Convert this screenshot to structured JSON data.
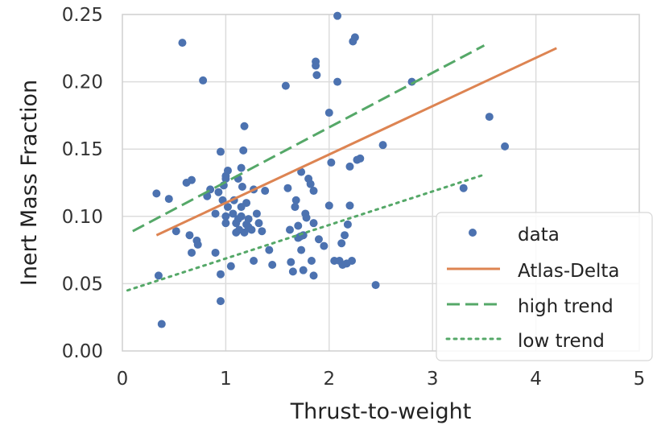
{
  "chart_data": {
    "type": "scatter",
    "xlabel": "Thrust-to-weight",
    "ylabel": "Inert Mass Fraction",
    "xlim": [
      0,
      5
    ],
    "ylim": [
      0,
      0.25
    ],
    "xticks": [
      0,
      1,
      2,
      3,
      4,
      5
    ],
    "xtick_labels": [
      "0",
      "1",
      "2",
      "3",
      "4",
      "5"
    ],
    "yticks": [
      0,
      0.05,
      0.1,
      0.15,
      0.2,
      0.25
    ],
    "ytick_labels": [
      "0.00",
      "0.05",
      "0.10",
      "0.15",
      "0.20",
      "0.25"
    ],
    "grid": true,
    "legend_position": "bottom-right",
    "colors": {
      "data": "#4c72b0",
      "atlas": "#dd8452",
      "high": "#55a868",
      "low": "#55a868",
      "grid": "#dcdcdc",
      "frame": "#cfcfcf"
    },
    "series": [
      {
        "name": "data",
        "kind": "points",
        "points": [
          [
            0.33,
            0.117
          ],
          [
            0.35,
            0.056
          ],
          [
            0.38,
            0.02
          ],
          [
            0.45,
            0.113
          ],
          [
            0.52,
            0.089
          ],
          [
            0.58,
            0.229
          ],
          [
            0.62,
            0.125
          ],
          [
            0.65,
            0.086
          ],
          [
            0.67,
            0.127
          ],
          [
            0.67,
            0.073
          ],
          [
            0.72,
            0.082
          ],
          [
            0.73,
            0.079
          ],
          [
            0.78,
            0.201
          ],
          [
            0.82,
            0.115
          ],
          [
            0.85,
            0.12
          ],
          [
            0.9,
            0.102
          ],
          [
            0.9,
            0.073
          ],
          [
            0.93,
            0.118
          ],
          [
            0.95,
            0.148
          ],
          [
            0.95,
            0.057
          ],
          [
            0.95,
            0.037
          ],
          [
            0.97,
            0.112
          ],
          [
            0.98,
            0.123
          ],
          [
            1.0,
            0.13
          ],
          [
            1.0,
            0.128
          ],
          [
            1.0,
            0.1
          ],
          [
            1.0,
            0.095
          ],
          [
            1.02,
            0.134
          ],
          [
            1.02,
            0.107
          ],
          [
            1.05,
            0.063
          ],
          [
            1.07,
            0.102
          ],
          [
            1.08,
            0.112
          ],
          [
            1.1,
            0.088
          ],
          [
            1.1,
            0.095
          ],
          [
            1.12,
            0.098
          ],
          [
            1.12,
            0.128
          ],
          [
            1.13,
            0.09
          ],
          [
            1.15,
            0.1
          ],
          [
            1.15,
            0.107
          ],
          [
            1.15,
            0.136
          ],
          [
            1.16,
            0.122
          ],
          [
            1.17,
            0.149
          ],
          [
            1.18,
            0.167
          ],
          [
            1.18,
            0.088
          ],
          [
            1.2,
            0.11
          ],
          [
            1.2,
            0.094
          ],
          [
            1.22,
            0.098
          ],
          [
            1.22,
            0.092
          ],
          [
            1.25,
            0.09
          ],
          [
            1.27,
            0.12
          ],
          [
            1.27,
            0.067
          ],
          [
            1.3,
            0.102
          ],
          [
            1.32,
            0.095
          ],
          [
            1.35,
            0.089
          ],
          [
            1.38,
            0.119
          ],
          [
            1.42,
            0.075
          ],
          [
            1.45,
            0.064
          ],
          [
            1.58,
            0.197
          ],
          [
            1.6,
            0.121
          ],
          [
            1.62,
            0.09
          ],
          [
            1.63,
            0.066
          ],
          [
            1.65,
            0.059
          ],
          [
            1.67,
            0.107
          ],
          [
            1.68,
            0.112
          ],
          [
            1.7,
            0.084
          ],
          [
            1.7,
            0.093
          ],
          [
            1.72,
            0.085
          ],
          [
            1.73,
            0.133
          ],
          [
            1.73,
            0.075
          ],
          [
            1.75,
            0.086
          ],
          [
            1.75,
            0.06
          ],
          [
            1.77,
            0.102
          ],
          [
            1.78,
            0.099
          ],
          [
            1.8,
            0.128
          ],
          [
            1.82,
            0.124
          ],
          [
            1.83,
            0.067
          ],
          [
            1.85,
            0.119
          ],
          [
            1.85,
            0.095
          ],
          [
            1.85,
            0.056
          ],
          [
            1.87,
            0.212
          ],
          [
            1.87,
            0.215
          ],
          [
            1.88,
            0.205
          ],
          [
            1.9,
            0.083
          ],
          [
            1.95,
            0.078
          ],
          [
            2.0,
            0.108
          ],
          [
            2.0,
            0.177
          ],
          [
            2.02,
            0.14
          ],
          [
            2.05,
            0.067
          ],
          [
            2.08,
            0.2
          ],
          [
            2.08,
            0.249
          ],
          [
            2.1,
            0.067
          ],
          [
            2.12,
            0.08
          ],
          [
            2.13,
            0.064
          ],
          [
            2.15,
            0.086
          ],
          [
            2.17,
            0.065
          ],
          [
            2.18,
            0.094
          ],
          [
            2.2,
            0.137
          ],
          [
            2.2,
            0.108
          ],
          [
            2.22,
            0.067
          ],
          [
            2.23,
            0.23
          ],
          [
            2.25,
            0.233
          ],
          [
            2.27,
            0.142
          ],
          [
            2.3,
            0.143
          ],
          [
            2.45,
            0.049
          ],
          [
            2.52,
            0.153
          ],
          [
            2.8,
            0.2
          ],
          [
            3.3,
            0.121
          ],
          [
            3.55,
            0.174
          ],
          [
            3.7,
            0.152
          ]
        ]
      },
      {
        "name": "Atlas-Delta",
        "kind": "line",
        "style": "solid",
        "x": [
          0.33,
          4.2
        ],
        "y": [
          0.086,
          0.225
        ]
      },
      {
        "name": "high trend",
        "kind": "line",
        "style": "dashed",
        "x": [
          0.1,
          3.5
        ],
        "y": [
          0.089,
          0.227
        ]
      },
      {
        "name": "low trend",
        "kind": "line",
        "style": "dotted",
        "x": [
          0.05,
          3.5
        ],
        "y": [
          0.045,
          0.131
        ]
      }
    ]
  }
}
